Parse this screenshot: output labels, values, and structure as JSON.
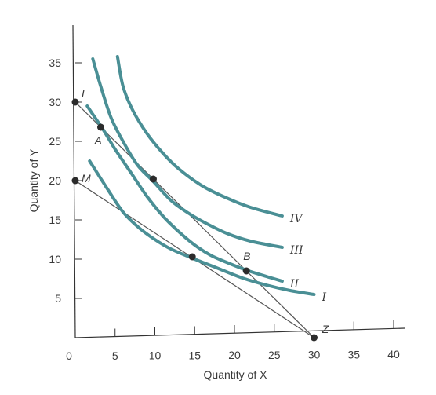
{
  "chart_data": {
    "type": "line",
    "xlabel": "Quantity of X",
    "ylabel": "Quantity of Y",
    "xlim": [
      0,
      40
    ],
    "ylim": [
      0,
      35
    ],
    "x_ticks": [
      0,
      5,
      10,
      15,
      20,
      25,
      30,
      35,
      40
    ],
    "y_ticks": [
      5,
      10,
      15,
      20,
      25,
      30,
      35
    ],
    "x_tick_labels": [
      "0",
      "5",
      "10",
      "15",
      "20",
      "25",
      "30",
      "35",
      "40"
    ],
    "y_tick_labels": [
      "5",
      "10",
      "15",
      "20",
      "25",
      "30",
      "35"
    ],
    "grid": false,
    "curve_color": "#4a8f95",
    "line_color": "#555555",
    "indifference_curves": [
      {
        "name": "I",
        "points": [
          [
            1.8,
            22.5
          ],
          [
            4,
            19
          ],
          [
            6,
            16
          ],
          [
            8,
            14
          ],
          [
            10,
            12.5
          ],
          [
            12,
            11.3
          ],
          [
            15,
            10
          ],
          [
            18,
            8.8
          ],
          [
            21,
            7.6
          ],
          [
            24,
            6.7
          ],
          [
            27,
            6.0
          ],
          [
            30,
            5.5
          ]
        ]
      },
      {
        "name": "II",
        "points": [
          [
            1.5,
            29.5
          ],
          [
            2.5,
            28
          ],
          [
            3.5,
            26.5
          ],
          [
            5,
            24
          ],
          [
            7,
            21
          ],
          [
            9,
            18
          ],
          [
            11,
            15.5
          ],
          [
            13,
            13.5
          ],
          [
            15,
            11.8
          ],
          [
            17,
            10.5
          ],
          [
            19,
            9.6
          ],
          [
            21.5,
            8.6
          ],
          [
            24,
            7.8
          ],
          [
            26,
            7.2
          ]
        ]
      },
      {
        "name": "III",
        "points": [
          [
            2.2,
            35.5
          ],
          [
            3.2,
            32
          ],
          [
            4.5,
            28
          ],
          [
            6,
            25
          ],
          [
            7.8,
            22
          ],
          [
            9.7,
            20
          ],
          [
            12,
            17.5
          ],
          [
            14,
            16
          ],
          [
            16,
            14.8
          ],
          [
            19,
            13.3
          ],
          [
            22,
            12.3
          ],
          [
            26,
            11.5
          ]
        ]
      },
      {
        "name": "IV",
        "points": [
          [
            5.3,
            35.8
          ],
          [
            6,
            32
          ],
          [
            7.2,
            29
          ],
          [
            9,
            26
          ],
          [
            11,
            23.5
          ],
          [
            13,
            21.5
          ],
          [
            16,
            19.3
          ],
          [
            19,
            17.8
          ],
          [
            22,
            16.6
          ],
          [
            26,
            15.5
          ]
        ]
      }
    ],
    "budget_lines": [
      {
        "from": "L",
        "to": "Z"
      },
      {
        "from": "M",
        "to": "Z"
      }
    ],
    "points": [
      {
        "label": "L",
        "x": 0,
        "y": 30
      },
      {
        "label": "M",
        "x": 0,
        "y": 20
      },
      {
        "label": "Z",
        "x": 30,
        "y": 0
      },
      {
        "label": "A",
        "x": 3.2,
        "y": 26.8
      },
      {
        "label": "",
        "x": 9.8,
        "y": 20.2
      },
      {
        "label": "",
        "x": 14.7,
        "y": 10.3
      },
      {
        "label": "B",
        "x": 21.5,
        "y": 8.5
      }
    ]
  }
}
